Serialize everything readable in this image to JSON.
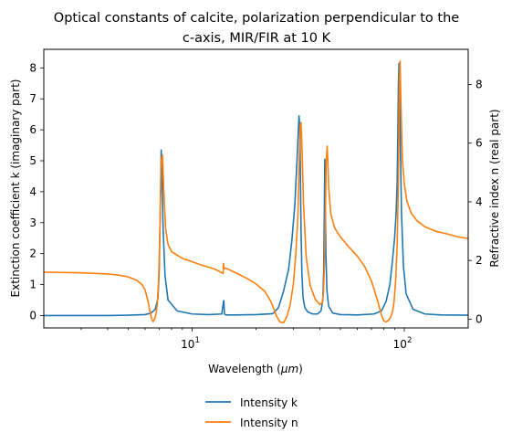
{
  "chart_data": {
    "type": "line",
    "title_lines": [
      "Optical constants of calcite, polarization perpendicular to the",
      "c-axis, MIR/FIR at 10 K"
    ],
    "xlabel_prefix": "Wavelength (",
    "xlabel_unit": "μm",
    "xlabel_suffix": ")",
    "ylabel_left": "Extinction coefficient k (imaginary part)",
    "ylabel_right": "Refractive index n (real part)",
    "xscale": "log",
    "xlim": [
      2,
      200
    ],
    "ylim_left": [
      -0.4,
      8.6
    ],
    "ylim_right": [
      -0.3,
      9.2
    ],
    "x_major_ticks": [
      {
        "base": "10",
        "exp": "1",
        "value": 10
      },
      {
        "base": "10",
        "exp": "2",
        "value": 100
      }
    ],
    "y_left_ticks": [
      "0",
      "1",
      "2",
      "3",
      "4",
      "5",
      "6",
      "7",
      "8"
    ],
    "y_right_ticks": [
      "0",
      "2",
      "4",
      "6",
      "8"
    ],
    "grid": false,
    "legend_position": "below plot, centered",
    "series": [
      {
        "name": "Intensity k",
        "axis": "left",
        "color": "#1f77b4",
        "x": [
          2,
          3,
          4,
          5,
          6,
          6.4,
          6.7,
          6.9,
          7.0,
          7.08,
          7.15,
          7.2,
          7.3,
          7.45,
          7.7,
          8.5,
          10,
          12,
          13.8,
          14.05,
          14.1,
          14.15,
          14.2,
          14.4,
          16,
          20,
          24,
          25.5,
          27,
          28.5,
          29.5,
          30.5,
          31.3,
          31.9,
          32.2,
          32.4,
          32.6,
          32.9,
          33.3,
          34,
          35,
          37,
          39,
          40.5,
          41.3,
          41.7,
          42.0,
          42.2,
          42.4,
          42.7,
          43.2,
          44,
          46,
          50,
          60,
          72,
          78,
          82,
          85.5,
          88,
          90,
          91.5,
          92.5,
          93.2,
          93.8,
          94.4,
          95,
          95.8,
          97,
          99,
          102,
          110,
          125,
          150,
          200
        ],
        "y": [
          0.0,
          0.0,
          0.0,
          0.01,
          0.03,
          0.08,
          0.2,
          0.55,
          1.5,
          3.5,
          5.35,
          4.8,
          2.8,
          1.3,
          0.5,
          0.15,
          0.05,
          0.03,
          0.05,
          0.45,
          0.48,
          0.3,
          0.05,
          0.02,
          0.02,
          0.03,
          0.06,
          0.25,
          0.8,
          1.5,
          2.4,
          3.6,
          5.2,
          6.45,
          6.0,
          4.5,
          2.8,
          1.4,
          0.6,
          0.25,
          0.12,
          0.05,
          0.05,
          0.15,
          0.5,
          1.5,
          3.5,
          5.05,
          3.8,
          2.0,
          0.8,
          0.3,
          0.08,
          0.03,
          0.02,
          0.05,
          0.15,
          0.45,
          1.0,
          1.8,
          2.5,
          3.3,
          4.3,
          5.8,
          7.5,
          8.15,
          7.6,
          5.5,
          3.3,
          1.6,
          0.7,
          0.2,
          0.05,
          0.02,
          0.01
        ]
      },
      {
        "name": "Intensity n",
        "axis": "right",
        "color": "#ff7f0e",
        "x": [
          2,
          2.5,
          3,
          3.5,
          4,
          4.5,
          5,
          5.5,
          5.8,
          6.0,
          6.2,
          6.35,
          6.45,
          6.55,
          6.65,
          6.75,
          6.85,
          6.95,
          7.05,
          7.15,
          7.25,
          7.35,
          7.5,
          7.7,
          8,
          9,
          10,
          11,
          12,
          13,
          13.8,
          14.0,
          14.05,
          14.12,
          14.2,
          14.4,
          15,
          16,
          18,
          20,
          22,
          23.5,
          25,
          26,
          27,
          28,
          29,
          30,
          30.8,
          31.5,
          32.0,
          32.3,
          32.6,
          33.0,
          33.5,
          34.5,
          36,
          38,
          40,
          41,
          41.6,
          42.0,
          42.4,
          42.8,
          43.3,
          43.6,
          44,
          45,
          47,
          50,
          55,
          60,
          65,
          70,
          75,
          78,
          80,
          82,
          84,
          86,
          88,
          89.5,
          91,
          92.5,
          93.5,
          94.2,
          94.8,
          95.5,
          96.5,
          98,
          100,
          103,
          108,
          115,
          125,
          140,
          160,
          180,
          200
        ],
        "y": [
          1.6,
          1.59,
          1.58,
          1.56,
          1.54,
          1.5,
          1.44,
          1.32,
          1.18,
          1.0,
          0.6,
          0.2,
          0.0,
          -0.08,
          0.0,
          0.15,
          0.5,
          1.3,
          3.0,
          5.4,
          5.6,
          4.4,
          3.1,
          2.55,
          2.3,
          2.07,
          1.96,
          1.85,
          1.77,
          1.68,
          1.58,
          1.56,
          1.9,
          1.75,
          1.72,
          1.74,
          1.68,
          1.58,
          1.4,
          1.2,
          0.95,
          0.6,
          0.1,
          -0.1,
          -0.12,
          0.1,
          0.5,
          1.2,
          2.2,
          3.5,
          5.5,
          6.6,
          6.7,
          5.7,
          3.9,
          2.1,
          1.15,
          0.68,
          0.5,
          0.55,
          0.9,
          1.8,
          3.3,
          5.3,
          5.9,
          5.4,
          4.5,
          3.6,
          3.1,
          2.8,
          2.45,
          2.15,
          1.8,
          1.3,
          0.6,
          0.15,
          -0.06,
          -0.1,
          -0.05,
          0.05,
          0.25,
          0.6,
          1.3,
          2.5,
          4.2,
          6.0,
          8.2,
          8.8,
          7.2,
          5.4,
          4.6,
          4.0,
          3.6,
          3.35,
          3.15,
          3.0,
          2.9,
          2.8,
          2.75
        ]
      }
    ]
  }
}
